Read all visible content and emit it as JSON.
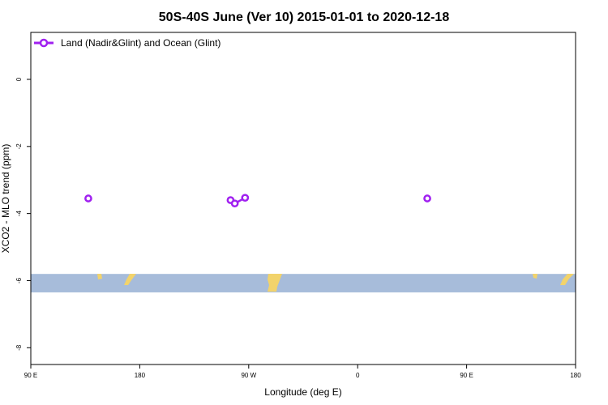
{
  "chart_data": {
    "type": "line",
    "title": "50S-40S June (Ver 10)   2015-01-01 to 2020-12-18",
    "xlabel": "Longitude (deg E)",
    "ylabel": "XCO2 - MLO trend (ppm)",
    "x_ticks": [
      "90 E",
      "180",
      "90 W",
      "0",
      "90 E",
      "180"
    ],
    "y_ticks": [
      "0",
      "-2",
      "-4",
      "-6",
      "-8"
    ],
    "x_axis_note": "x values are longitude positions along the axis running from 90 E eastward through 180, 90 W and 0 back to 90 E and 180",
    "xlim": [
      90,
      450
    ],
    "ylim": [
      -8.5,
      1.4
    ],
    "grid": false,
    "legend_position": "top-left",
    "series": [
      {
        "name": "Land (Nadir&Glint) and Ocean (Glint)",
        "color": "#a020f0",
        "segments": [
          [
            {
              "x": 137.5,
              "y": -3.55
            }
          ],
          [
            {
              "x": 255,
              "y": -3.6
            },
            {
              "x": 258.5,
              "y": -3.7
            },
            {
              "x": 267,
              "y": -3.53
            }
          ],
          [
            {
              "x": 417.5,
              "y": -3.55
            }
          ]
        ]
      }
    ],
    "map_band": {
      "y_top": -5.8,
      "y_bottom": -6.35,
      "ocean_color": "#a7bcda",
      "land_color": "#f2d36b"
    }
  }
}
